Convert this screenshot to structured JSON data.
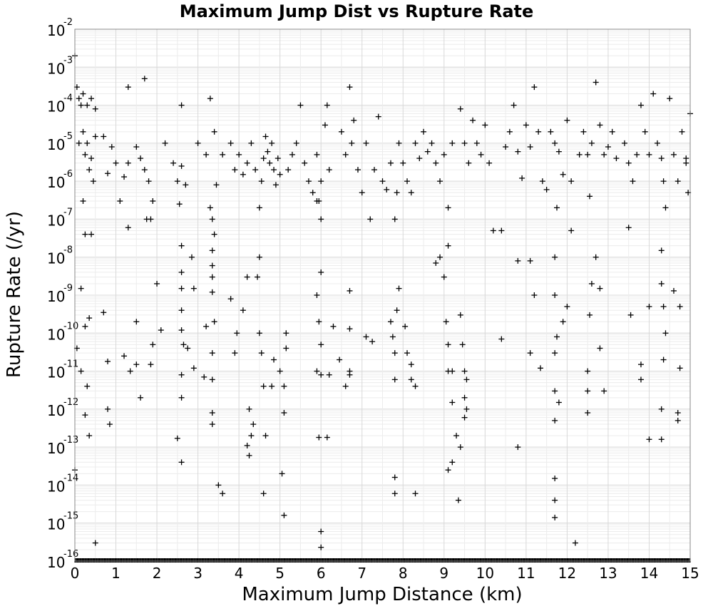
{
  "chart_data": {
    "type": "scatter",
    "title": "Maximum Jump Dist vs Rupture Rate",
    "xlabel": "Maximum Jump Distance (km)",
    "ylabel": "Rupture Rate (/yr)",
    "xlim": [
      0,
      15
    ],
    "ylim": [
      1e-16,
      0.01
    ],
    "yscale": "log",
    "grid": true,
    "marker": "+",
    "marker_color": "#000000",
    "x_ticks": [
      "0",
      "1",
      "2",
      "3",
      "4",
      "5",
      "6",
      "7",
      "8",
      "9",
      "10",
      "11",
      "12",
      "13",
      "14",
      "15"
    ],
    "y_ticks": [
      {
        "base": "10",
        "exp": "-16"
      },
      {
        "base": "10",
        "exp": "-15"
      },
      {
        "base": "10",
        "exp": "-14"
      },
      {
        "base": "10",
        "exp": "-13"
      },
      {
        "base": "10",
        "exp": "-12"
      },
      {
        "base": "10",
        "exp": "-11"
      },
      {
        "base": "10",
        "exp": "-10"
      },
      {
        "base": "10",
        "exp": "-9"
      },
      {
        "base": "10",
        "exp": "-8"
      },
      {
        "base": "10",
        "exp": "-7"
      },
      {
        "base": "10",
        "exp": "-6"
      },
      {
        "base": "10",
        "exp": "-5"
      },
      {
        "base": "10",
        "exp": "-4"
      },
      {
        "base": "10",
        "exp": "-3"
      },
      {
        "base": "10",
        "exp": "-2"
      }
    ],
    "points": [
      [
        0.0,
        0.002
      ],
      [
        0.05,
        0.0003
      ],
      [
        0.1,
        0.00015
      ],
      [
        0.15,
        0.0001
      ],
      [
        0.2,
        0.0002
      ],
      [
        0.3,
        0.0001
      ],
      [
        0.4,
        0.00015
      ],
      [
        0.5,
        8e-05
      ],
      [
        0.1,
        1e-05
      ],
      [
        0.2,
        2e-05
      ],
      [
        0.25,
        5e-06
      ],
      [
        0.3,
        1e-05
      ],
      [
        0.35,
        2e-06
      ],
      [
        0.4,
        4e-06
      ],
      [
        0.45,
        1e-06
      ],
      [
        0.5,
        1.5e-05
      ],
      [
        0.2,
        3e-07
      ],
      [
        0.25,
        4e-08
      ],
      [
        0.4,
        4e-08
      ],
      [
        0.15,
        1.5e-09
      ],
      [
        0.25,
        1.5e-10
      ],
      [
        0.35,
        2.5e-10
      ],
      [
        0.05,
        4e-11
      ],
      [
        0.15,
        1e-11
      ],
      [
        0.3,
        4e-12
      ],
      [
        0.25,
        7e-13
      ],
      [
        0.35,
        2e-13
      ],
      [
        0.0,
        2.5e-14
      ],
      [
        0.5,
        3e-16
      ],
      [
        0.7,
        1.5e-05
      ],
      [
        0.9,
        8e-06
      ],
      [
        1.0,
        3e-06
      ],
      [
        1.2,
        1.3e-06
      ],
      [
        1.3,
        3e-06
      ],
      [
        0.8,
        1.6e-06
      ],
      [
        1.1,
        3e-07
      ],
      [
        1.3,
        6e-08
      ],
      [
        0.7,
        3.5e-10
      ],
      [
        0.8,
        1.8e-11
      ],
      [
        1.2,
        2.5e-11
      ],
      [
        1.35,
        1e-11
      ],
      [
        1.5,
        1.5e-11
      ],
      [
        0.85,
        4e-13
      ],
      [
        0.8,
        1e-12
      ],
      [
        1.5,
        8e-06
      ],
      [
        1.6,
        4e-06
      ],
      [
        1.7,
        2e-06
      ],
      [
        1.8,
        1e-06
      ],
      [
        1.9,
        3e-07
      ],
      [
        1.85,
        1e-07
      ],
      [
        1.7,
        0.0005
      ],
      [
        1.3,
        0.0003
      ],
      [
        1.5,
        2e-10
      ],
      [
        1.6,
        2e-12
      ],
      [
        1.85,
        1.5e-11
      ],
      [
        1.9,
        5e-11
      ],
      [
        2.0,
        2e-09
      ],
      [
        2.1,
        1.2e-10
      ],
      [
        1.75,
        1e-07
      ],
      [
        2.2,
        1e-05
      ],
      [
        2.4,
        3e-06
      ],
      [
        2.5,
        1e-06
      ],
      [
        2.6,
        2.5e-06
      ],
      [
        2.7,
        8e-07
      ],
      [
        2.6,
        0.0001
      ],
      [
        2.55,
        2.5e-07
      ],
      [
        2.6,
        2e-08
      ],
      [
        2.6,
        4e-09
      ],
      [
        2.6,
        1.5e-09
      ],
      [
        2.6,
        4e-10
      ],
      [
        2.6,
        1.2e-10
      ],
      [
        2.65,
        5e-11
      ],
      [
        2.6,
        8e-12
      ],
      [
        2.6,
        2e-12
      ],
      [
        2.5,
        1.7e-13
      ],
      [
        2.6,
        4e-14
      ],
      [
        2.75,
        4e-11
      ],
      [
        2.9,
        1.2e-11
      ],
      [
        2.85,
        1e-08
      ],
      [
        2.9,
        1.5e-09
      ],
      [
        3.0,
        1e-05
      ],
      [
        3.2,
        5e-06
      ],
      [
        3.3,
        0.00015
      ],
      [
        3.4,
        2e-05
      ],
      [
        3.45,
        8e-07
      ],
      [
        3.3,
        2e-07
      ],
      [
        3.35,
        1e-07
      ],
      [
        3.35,
        6e-09
      ],
      [
        3.4,
        4e-08
      ],
      [
        3.35,
        1.5e-08
      ],
      [
        3.35,
        3e-09
      ],
      [
        3.35,
        1.2e-09
      ],
      [
        3.4,
        2e-10
      ],
      [
        3.35,
        3e-11
      ],
      [
        3.35,
        6e-12
      ],
      [
        3.35,
        8e-13
      ],
      [
        3.35,
        4e-13
      ],
      [
        3.5,
        1e-14
      ],
      [
        3.6,
        6e-15
      ],
      [
        3.2,
        1.5e-10
      ],
      [
        3.15,
        7e-12
      ],
      [
        3.6,
        5e-06
      ],
      [
        3.8,
        1e-05
      ],
      [
        3.9,
        2e-06
      ],
      [
        4.0,
        5e-06
      ],
      [
        4.1,
        1.5e-06
      ],
      [
        4.2,
        3e-06
      ],
      [
        4.3,
        1e-05
      ],
      [
        4.4,
        2e-06
      ],
      [
        3.8,
        8e-10
      ],
      [
        3.9,
        3e-11
      ],
      [
        3.95,
        1e-10
      ],
      [
        4.1,
        4e-10
      ],
      [
        4.2,
        3e-09
      ],
      [
        4.25,
        1e-12
      ],
      [
        4.2,
        1.1e-13
      ],
      [
        4.3,
        2e-13
      ],
      [
        4.35,
        4e-13
      ],
      [
        4.25,
        6e-14
      ],
      [
        4.45,
        3e-09
      ],
      [
        4.5,
        1e-08
      ],
      [
        4.5,
        2e-07
      ],
      [
        4.55,
        1e-06
      ],
      [
        4.6,
        4e-06
      ],
      [
        4.65,
        1.5e-05
      ],
      [
        4.7,
        6e-06
      ],
      [
        4.75,
        3e-06
      ],
      [
        4.8,
        1e-05
      ],
      [
        4.85,
        2e-06
      ],
      [
        4.9,
        8e-07
      ],
      [
        4.95,
        4e-06
      ],
      [
        5.0,
        1.5e-06
      ],
      [
        4.5,
        1e-10
      ],
      [
        4.55,
        3e-11
      ],
      [
        4.6,
        4e-12
      ],
      [
        4.65,
        2e-13
      ],
      [
        4.6,
        6e-15
      ],
      [
        4.8,
        4e-12
      ],
      [
        4.85,
        2e-11
      ],
      [
        5.0,
        1e-11
      ],
      [
        5.1,
        4e-12
      ],
      [
        5.05,
        2e-14
      ],
      [
        5.1,
        1.6e-15
      ],
      [
        5.1,
        8e-13
      ],
      [
        5.15,
        4e-11
      ],
      [
        5.15,
        1e-10
      ],
      [
        5.2,
        2e-06
      ],
      [
        5.3,
        5e-06
      ],
      [
        5.4,
        1e-05
      ],
      [
        5.5,
        0.0001
      ],
      [
        5.6,
        3e-06
      ],
      [
        5.7,
        1e-06
      ],
      [
        5.8,
        5e-07
      ],
      [
        5.9,
        3e-07
      ],
      [
        5.9,
        5e-06
      ],
      [
        6.0,
        1e-06
      ],
      [
        6.1,
        3e-05
      ],
      [
        6.15,
        0.0001
      ],
      [
        6.2,
        2e-06
      ],
      [
        6.0,
        1e-07
      ],
      [
        5.95,
        3e-07
      ],
      [
        5.9,
        1e-09
      ],
      [
        6.0,
        4e-09
      ],
      [
        5.95,
        2e-10
      ],
      [
        5.9,
        1e-11
      ],
      [
        6.0,
        5e-11
      ],
      [
        6.0,
        8e-12
      ],
      [
        5.95,
        1.8e-13
      ],
      [
        6.15,
        1.8e-13
      ],
      [
        6.0,
        6e-16
      ],
      [
        6.0,
        2.3e-16
      ],
      [
        6.2,
        8e-12
      ],
      [
        6.3,
        1.5e-10
      ],
      [
        6.45,
        2e-11
      ],
      [
        6.5,
        2e-05
      ],
      [
        6.6,
        5e-06
      ],
      [
        6.7,
        0.0003
      ],
      [
        6.75,
        1e-05
      ],
      [
        6.8,
        4e-05
      ],
      [
        6.9,
        2e-06
      ],
      [
        7.0,
        5e-07
      ],
      [
        7.1,
        1e-05
      ],
      [
        6.7,
        1.3e-09
      ],
      [
        6.7,
        1.3e-10
      ],
      [
        6.7,
        1e-11
      ],
      [
        6.7,
        8e-12
      ],
      [
        6.6,
        4e-12
      ],
      [
        7.1,
        8e-11
      ],
      [
        7.25,
        6e-11
      ],
      [
        7.2,
        1e-07
      ],
      [
        7.3,
        2e-06
      ],
      [
        7.4,
        5e-05
      ],
      [
        7.5,
        1e-06
      ],
      [
        7.6,
        6e-07
      ],
      [
        7.7,
        3e-06
      ],
      [
        7.8,
        1e-07
      ],
      [
        7.85,
        5e-07
      ],
      [
        7.9,
        1e-05
      ],
      [
        8.0,
        3e-06
      ],
      [
        8.1,
        1e-06
      ],
      [
        8.2,
        5e-07
      ],
      [
        8.3,
        1e-05
      ],
      [
        8.4,
        4e-06
      ],
      [
        7.7,
        2e-10
      ],
      [
        7.75,
        8e-11
      ],
      [
        7.8,
        3e-11
      ],
      [
        7.85,
        4e-10
      ],
      [
        7.9,
        1.5e-09
      ],
      [
        7.8,
        6e-12
      ],
      [
        7.8,
        1.6e-14
      ],
      [
        7.8,
        6e-15
      ],
      [
        8.05,
        1.5e-10
      ],
      [
        8.1,
        3e-11
      ],
      [
        8.2,
        1.5e-11
      ],
      [
        8.2,
        6e-12
      ],
      [
        8.3,
        6e-15
      ],
      [
        8.3,
        4e-12
      ],
      [
        8.5,
        2e-05
      ],
      [
        8.6,
        6e-06
      ],
      [
        8.7,
        1e-05
      ],
      [
        8.8,
        3e-06
      ],
      [
        8.9,
        1e-06
      ],
      [
        9.0,
        5e-06
      ],
      [
        9.1,
        2e-07
      ],
      [
        9.2,
        1e-05
      ],
      [
        8.8,
        7e-09
      ],
      [
        8.9,
        1e-08
      ],
      [
        9.0,
        3e-09
      ],
      [
        9.1,
        2e-08
      ],
      [
        9.05,
        2e-10
      ],
      [
        9.1,
        5e-11
      ],
      [
        9.1,
        1e-11
      ],
      [
        9.2,
        1e-11
      ],
      [
        9.2,
        1.5e-12
      ],
      [
        9.1,
        2.5e-14
      ],
      [
        9.2,
        4e-14
      ],
      [
        9.3,
        2e-13
      ],
      [
        9.4,
        1e-13
      ],
      [
        9.35,
        4e-15
      ],
      [
        9.4,
        8e-05
      ],
      [
        9.5,
        1e-05
      ],
      [
        9.6,
        3e-06
      ],
      [
        9.7,
        4e-05
      ],
      [
        9.8,
        1e-05
      ],
      [
        9.9,
        5e-06
      ],
      [
        10.0,
        3e-05
      ],
      [
        10.1,
        3e-06
      ],
      [
        9.4,
        3e-10
      ],
      [
        9.45,
        5e-11
      ],
      [
        9.5,
        1e-11
      ],
      [
        9.5,
        2e-12
      ],
      [
        9.55,
        6e-12
      ],
      [
        9.5,
        6e-13
      ],
      [
        9.55,
        1e-12
      ],
      [
        10.2,
        5e-08
      ],
      [
        10.4,
        5e-08
      ],
      [
        10.4,
        7e-11
      ],
      [
        10.5,
        8e-06
      ],
      [
        10.6,
        2e-05
      ],
      [
        10.7,
        0.0001
      ],
      [
        10.8,
        6e-06
      ],
      [
        10.9,
        1.2e-06
      ],
      [
        10.8,
        8e-09
      ],
      [
        10.8,
        1e-13
      ],
      [
        11.0,
        3e-05
      ],
      [
        11.1,
        8e-06
      ],
      [
        11.2,
        0.0003
      ],
      [
        11.3,
        2e-05
      ],
      [
        11.4,
        1e-06
      ],
      [
        11.5,
        6e-07
      ],
      [
        11.1,
        3e-11
      ],
      [
        11.2,
        1e-09
      ],
      [
        11.35,
        1.2e-11
      ],
      [
        11.1,
        8e-09
      ],
      [
        11.6,
        2e-05
      ],
      [
        11.7,
        1e-05
      ],
      [
        11.75,
        2e-07
      ],
      [
        11.8,
        6e-06
      ],
      [
        11.9,
        1.5e-06
      ],
      [
        12.0,
        4e-05
      ],
      [
        12.1,
        1e-06
      ],
      [
        11.7,
        1e-08
      ],
      [
        11.7,
        1e-09
      ],
      [
        11.75,
        8e-11
      ],
      [
        11.7,
        3e-11
      ],
      [
        11.7,
        3e-12
      ],
      [
        11.7,
        5e-13
      ],
      [
        11.7,
        1.5e-14
      ],
      [
        11.7,
        4e-15
      ],
      [
        11.7,
        1.4e-15
      ],
      [
        11.8,
        1.5e-12
      ],
      [
        11.9,
        2e-10
      ],
      [
        12.0,
        5e-10
      ],
      [
        12.2,
        3e-16
      ],
      [
        12.1,
        5e-08
      ],
      [
        12.3,
        5e-06
      ],
      [
        12.4,
        2e-05
      ],
      [
        12.5,
        5e-06
      ],
      [
        12.55,
        4e-07
      ],
      [
        12.6,
        1e-05
      ],
      [
        12.7,
        0.0004
      ],
      [
        12.8,
        3e-05
      ],
      [
        12.9,
        5e-06
      ],
      [
        12.5,
        1e-11
      ],
      [
        12.5,
        3e-12
      ],
      [
        12.5,
        8e-13
      ],
      [
        12.55,
        3e-10
      ],
      [
        12.6,
        2e-09
      ],
      [
        12.7,
        1e-08
      ],
      [
        12.8,
        1.5e-09
      ],
      [
        12.9,
        3e-12
      ],
      [
        12.8,
        4e-11
      ],
      [
        13.0,
        8e-06
      ],
      [
        13.1,
        2e-05
      ],
      [
        13.2,
        4e-06
      ],
      [
        13.4,
        1e-05
      ],
      [
        13.5,
        3e-06
      ],
      [
        13.6,
        1e-06
      ],
      [
        13.7,
        5e-06
      ],
      [
        13.8,
        0.0001
      ],
      [
        13.9,
        2e-05
      ],
      [
        14.0,
        5e-06
      ],
      [
        14.1,
        0.0002
      ],
      [
        13.5,
        6e-08
      ],
      [
        13.55,
        3e-10
      ],
      [
        13.8,
        1.5e-11
      ],
      [
        13.8,
        6e-12
      ],
      [
        14.0,
        1.6e-13
      ],
      [
        14.0,
        5e-10
      ],
      [
        14.2,
        1e-05
      ],
      [
        14.3,
        4e-06
      ],
      [
        14.35,
        1e-06
      ],
      [
        14.4,
        2e-07
      ],
      [
        14.5,
        0.00015
      ],
      [
        14.6,
        5e-06
      ],
      [
        14.7,
        1e-06
      ],
      [
        14.8,
        2e-05
      ],
      [
        14.9,
        3e-06
      ],
      [
        15.0,
        6e-05
      ],
      [
        14.3,
        1.5e-08
      ],
      [
        14.3,
        2e-09
      ],
      [
        14.35,
        5e-10
      ],
      [
        14.4,
        1e-10
      ],
      [
        14.35,
        2e-11
      ],
      [
        14.3,
        1e-12
      ],
      [
        14.3,
        1.6e-13
      ],
      [
        14.75,
        1.2e-11
      ],
      [
        14.7,
        5e-13
      ],
      [
        14.7,
        8e-13
      ],
      [
        14.75,
        5e-10
      ],
      [
        14.6,
        1.3e-09
      ],
      [
        14.9,
        4e-06
      ],
      [
        14.95,
        5e-07
      ]
    ]
  }
}
